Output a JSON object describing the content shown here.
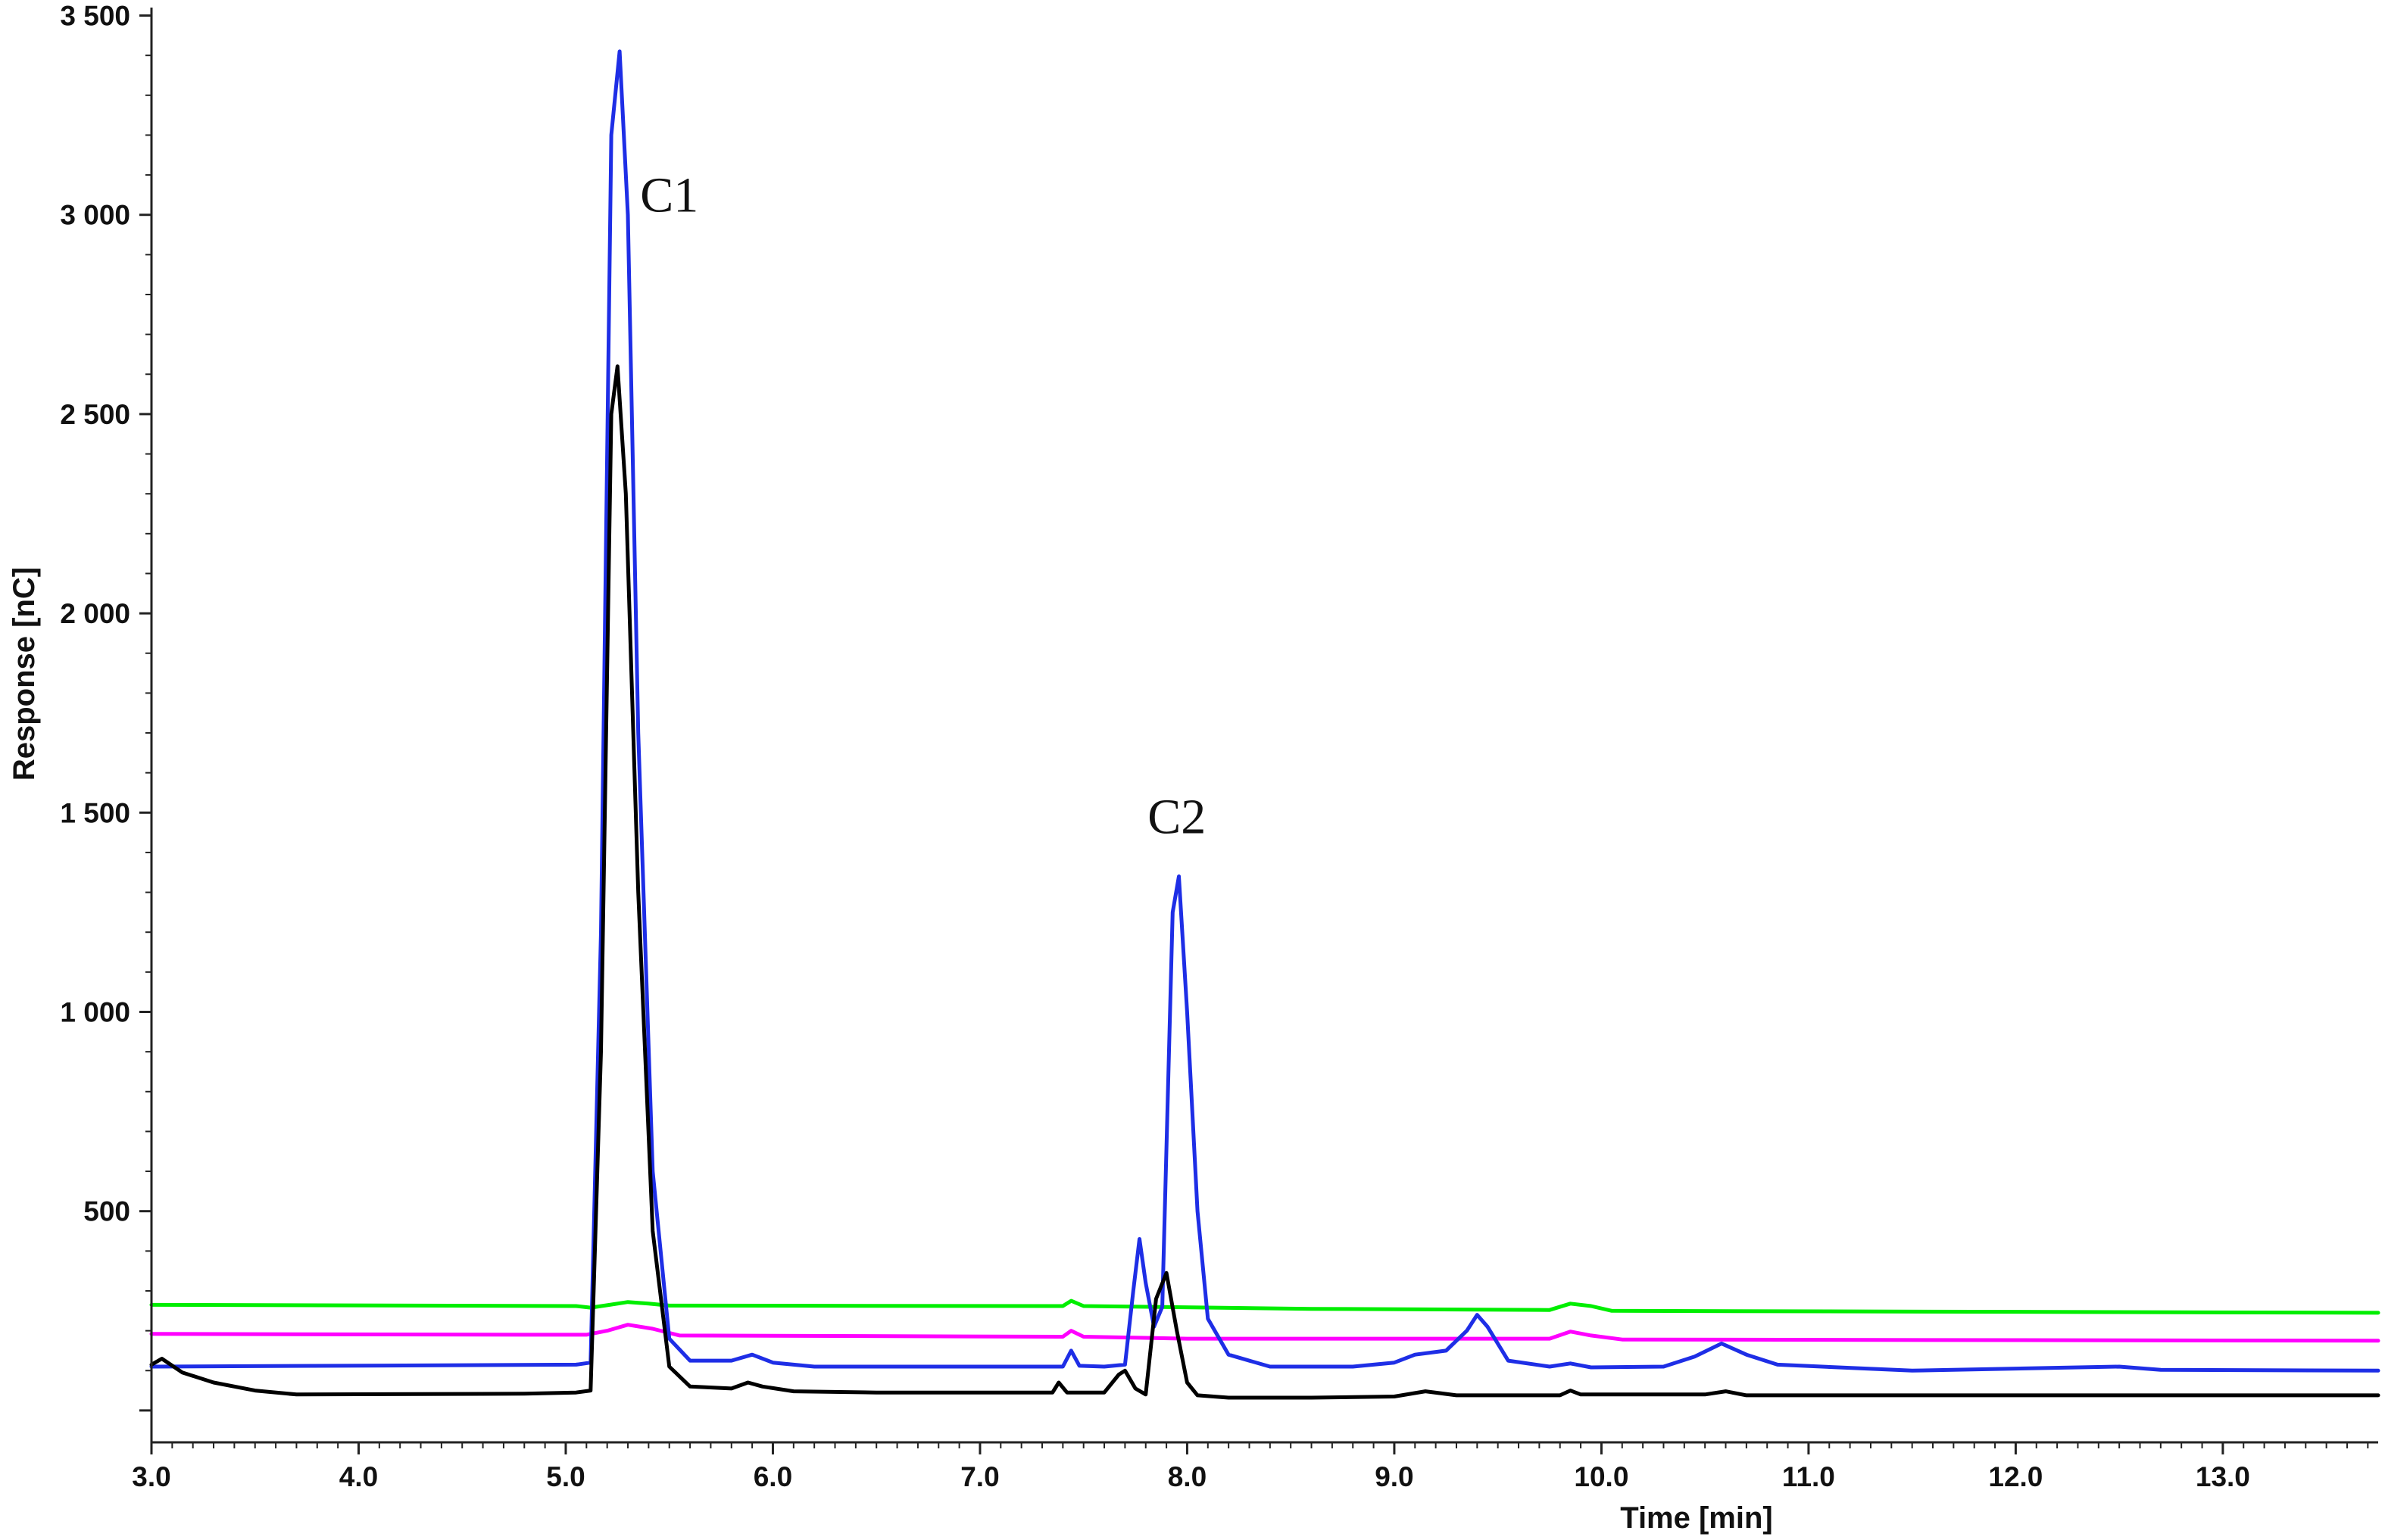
{
  "chart_data": {
    "type": "line",
    "title": "",
    "xlabel": "Time [min]",
    "ylabel": "Response [nC]",
    "xlim": [
      3.0,
      13.75
    ],
    "ylim": [
      -80,
      3520
    ],
    "x_ticks": [
      3.0,
      4.0,
      5.0,
      6.0,
      7.0,
      8.0,
      9.0,
      10.0,
      11.0,
      12.0,
      13.0
    ],
    "x_tick_labels": [
      "3.0",
      "4.0",
      "5.0",
      "6.0",
      "7.0",
      "8.0",
      "9.0",
      "10.0",
      "11.0",
      "12.0",
      "13.0"
    ],
    "y_ticks": [
      500,
      1000,
      1500,
      2000,
      2500,
      3000,
      3500
    ],
    "y_tick_labels": [
      "500",
      "1 000",
      "1 500",
      "2 000",
      "2 500",
      "3 000",
      "3 500"
    ],
    "grid": false,
    "legend": "none",
    "annotations": [
      {
        "text": "C1",
        "x": 5.5,
        "y": 3050
      },
      {
        "text": "C2",
        "x": 7.95,
        "y": 1490
      }
    ],
    "series": [
      {
        "color": "#00ee00",
        "x": [
          3.0,
          5.05,
          5.12,
          5.2,
          5.3,
          5.4,
          5.5,
          7.4,
          7.44,
          7.5,
          8.6,
          9.75,
          9.85,
          9.95,
          10.05,
          13.75
        ],
        "y": [
          265,
          262,
          258,
          264,
          272,
          268,
          263,
          262,
          275,
          262,
          255,
          252,
          268,
          262,
          250,
          245
        ]
      },
      {
        "color": "#ff00ff",
        "x": [
          3.0,
          4.8,
          5.1,
          5.2,
          5.3,
          5.42,
          5.55,
          7.4,
          7.44,
          7.5,
          8.0,
          9.75,
          9.85,
          9.95,
          10.1,
          13.75
        ],
        "y": [
          192,
          190,
          190,
          200,
          215,
          205,
          188,
          185,
          200,
          185,
          180,
          180,
          198,
          188,
          178,
          175
        ]
      },
      {
        "color": "#1e2ee6",
        "x": [
          3.0,
          5.05,
          5.12,
          5.17,
          5.22,
          5.26,
          5.3,
          5.35,
          5.42,
          5.5,
          5.6,
          5.8,
          5.9,
          6.0,
          6.2,
          7.4,
          7.44,
          7.48,
          7.6,
          7.7,
          7.74,
          7.77,
          7.8,
          7.84,
          7.88,
          7.93,
          7.96,
          8.0,
          8.05,
          8.1,
          8.2,
          8.4,
          8.8,
          9.0,
          9.1,
          9.25,
          9.35,
          9.4,
          9.45,
          9.55,
          9.75,
          9.85,
          9.95,
          10.3,
          10.45,
          10.58,
          10.7,
          10.85,
          11.5,
          12.5,
          12.7,
          13.75
        ],
        "y": [
          110,
          115,
          120,
          1200,
          3200,
          3410,
          3000,
          1700,
          600,
          180,
          125,
          125,
          140,
          120,
          110,
          110,
          150,
          112,
          110,
          115,
          300,
          430,
          320,
          210,
          260,
          1250,
          1340,
          1000,
          500,
          230,
          140,
          110,
          110,
          120,
          140,
          150,
          200,
          240,
          210,
          125,
          110,
          118,
          108,
          110,
          135,
          168,
          140,
          115,
          100,
          110,
          102,
          100
        ]
      },
      {
        "color": "#000000",
        "x": [
          3.0,
          3.05,
          3.15,
          3.3,
          3.5,
          3.7,
          4.8,
          5.05,
          5.12,
          5.17,
          5.22,
          5.25,
          5.29,
          5.35,
          5.42,
          5.5,
          5.6,
          5.8,
          5.88,
          5.95,
          6.1,
          6.5,
          7.35,
          7.38,
          7.42,
          7.6,
          7.67,
          7.7,
          7.75,
          7.8,
          7.85,
          7.9,
          7.95,
          8.0,
          8.05,
          8.2,
          8.6,
          9.0,
          9.15,
          9.3,
          9.8,
          9.85,
          9.9,
          10.5,
          10.6,
          10.7,
          13.75
        ],
        "y": [
          115,
          130,
          95,
          70,
          50,
          40,
          42,
          45,
          50,
          900,
          2500,
          2620,
          2300,
          1300,
          450,
          110,
          60,
          55,
          70,
          60,
          48,
          45,
          45,
          70,
          45,
          45,
          90,
          100,
          55,
          40,
          280,
          345,
          200,
          70,
          38,
          32,
          32,
          35,
          48,
          38,
          38,
          50,
          40,
          40,
          48,
          38,
          38
        ]
      }
    ]
  }
}
